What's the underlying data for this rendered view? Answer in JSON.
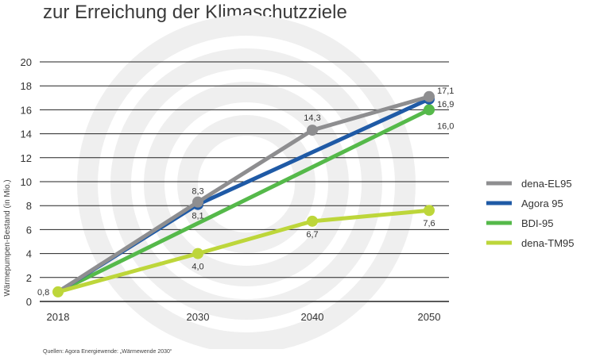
{
  "colors": {
    "dena_el95": "#8e8e90",
    "agora_95": "#1f5aa6",
    "bdi_95": "#55b94a",
    "dena_tm95": "#bdd63a",
    "grid": "#222222",
    "watermark": "#efefef"
  },
  "footer": {
    "source": "Quellen: Agora Energiewende: „Wärmewende 2030“"
  },
  "chart_data": {
    "type": "line",
    "title": "zur Erreichung der Klimaschutzziele",
    "xlabel": "",
    "ylabel": "Wärmepumpen-Bestand (in Mio.)",
    "x": [
      2018,
      2030,
      2040,
      2050
    ],
    "x_tick_labels": [
      "2018",
      "2030",
      "2040",
      "2050"
    ],
    "ylim": [
      0,
      20
    ],
    "y_ticks": [
      0,
      2,
      4,
      6,
      8,
      10,
      12,
      14,
      16,
      18,
      20
    ],
    "grid": true,
    "legend_position": "right",
    "series": [
      {
        "name": "dena-EL95",
        "color_key": "dena_el95",
        "x": [
          2018,
          2030,
          2040,
          2050
        ],
        "values": [
          0.8,
          8.3,
          14.3,
          17.1
        ],
        "labels": [
          {
            "x": 2030,
            "text": "8,3"
          },
          {
            "x": 2040,
            "text": "14,3"
          },
          {
            "x": 2050,
            "text": "17,1"
          }
        ]
      },
      {
        "name": "Agora 95",
        "color_key": "agora_95",
        "x": [
          2018,
          2030,
          2050
        ],
        "values": [
          0.8,
          8.1,
          16.9
        ],
        "labels": [
          {
            "x": 2030,
            "text": "8,1"
          },
          {
            "x": 2050,
            "text": "16,9"
          }
        ]
      },
      {
        "name": "BDI-95",
        "color_key": "bdi_95",
        "x": [
          2018,
          2050
        ],
        "values": [
          0.8,
          16.0
        ],
        "labels": [
          {
            "x": 2050,
            "text": "16,0"
          }
        ]
      },
      {
        "name": "dena-TM95",
        "color_key": "dena_tm95",
        "x": [
          2018,
          2030,
          2040,
          2050
        ],
        "values": [
          0.8,
          4.0,
          6.7,
          7.6
        ],
        "labels": [
          {
            "x": 2018,
            "text": "0,8"
          },
          {
            "x": 2030,
            "text": "4,0"
          },
          {
            "x": 2040,
            "text": "6,7"
          },
          {
            "x": 2050,
            "text": "7,6"
          }
        ]
      }
    ],
    "draw_order": [
      "BDI-95",
      "Agora 95",
      "dena-EL95",
      "dena-TM95"
    ]
  }
}
